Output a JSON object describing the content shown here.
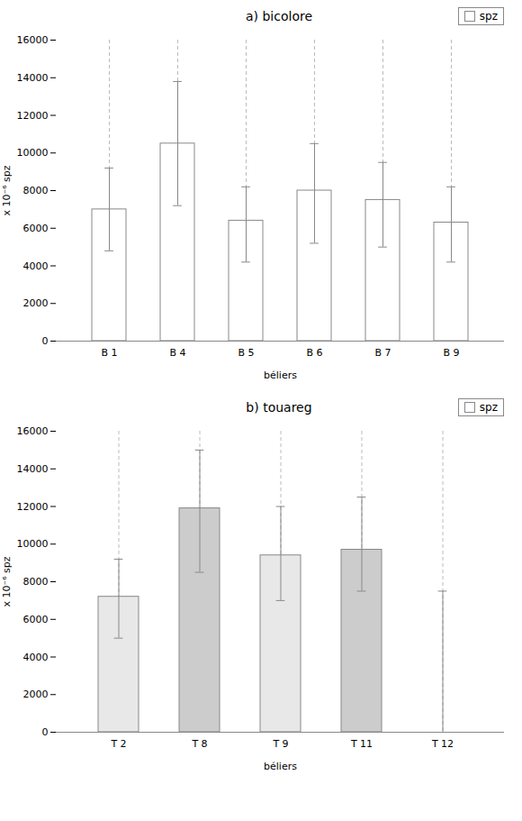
{
  "chart_data": [
    {
      "type": "bar",
      "title": "a) bicolore",
      "xlabel": "béliers",
      "ylabel": "x 10⁻⁶ spz",
      "categories": [
        "B 1",
        "B 4",
        "B 5",
        "B 6",
        "B 7",
        "B 9"
      ],
      "series": [
        {
          "name": "spz",
          "values": [
            7000,
            10500,
            6400,
            8000,
            7500,
            6300
          ],
          "errors_low": [
            2200,
            3300,
            2200,
            2800,
            2500,
            2100
          ],
          "errors_high": [
            2200,
            3300,
            1800,
            2500,
            2000,
            1900
          ],
          "color": "#ffffff"
        }
      ],
      "ylim": [
        0,
        16000
      ],
      "yticks": [
        0,
        2000,
        4000,
        6000,
        8000,
        10000,
        12000,
        14000,
        16000
      ],
      "grid": true,
      "legend": "upper right"
    },
    {
      "type": "bar",
      "title": "b) touareg",
      "xlabel": "béliers",
      "ylabel": "x 10⁻⁶ spz",
      "categories": [
        "T 2",
        "T 8",
        "T 9",
        "T 11",
        "T 12"
      ],
      "series": [
        {
          "name": "spz",
          "values": [
            7200,
            11900,
            9400,
            9700,
            0
          ],
          "errors_low": [
            2200,
            3400,
            2400,
            2200,
            0
          ],
          "errors_high": [
            2000,
            3100,
            2600,
            2800,
            7500
          ],
          "colors": [
            "#e8e8e8",
            "#cccccc",
            "#e8e8e8",
            "#cccccc",
            "#ffffff"
          ]
        }
      ],
      "ylim": [
        0,
        16000
      ],
      "yticks": [
        0,
        2000,
        4000,
        6000,
        8000,
        10000,
        12000,
        14000,
        16000
      ],
      "grid": true,
      "legend": "upper right"
    }
  ]
}
